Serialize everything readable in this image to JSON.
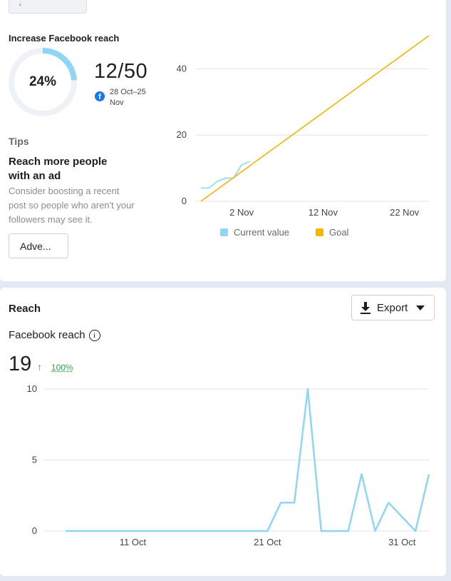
{
  "goal": {
    "title": "Increase Facebook reach",
    "percent_label": "24%",
    "progress_fraction": 0.24,
    "progress_text": "12/50",
    "platform_icon": "facebook-icon",
    "date_range": "28 Oct–25 Nov"
  },
  "tips": {
    "label": "Tips",
    "title": "Reach more people with an ad",
    "body": "Consider boosting a recent post so people who aren't your followers may see it.",
    "button_label": "Adve..."
  },
  "reach": {
    "title": "Reach",
    "export_label": "Export",
    "metric_label": "Facebook reach",
    "info_glyph": "i",
    "value": "19",
    "change": "100%",
    "change_color": "#31a24c"
  },
  "colors": {
    "current": "#8fd5f5",
    "goal": "#f5b600",
    "ring_track": "#eef1f5",
    "ring_fill": "#8fd5f5"
  },
  "chart_data": [
    {
      "type": "line",
      "title": "Increase Facebook reach",
      "x_tick_labels": [
        "2 Nov",
        "12 Nov",
        "22 Nov"
      ],
      "x_ticks": [
        5,
        15,
        25
      ],
      "xlim": [
        0,
        28
      ],
      "y_tick_labels": [
        "0",
        "20",
        "40"
      ],
      "y_ticks": [
        0,
        20,
        40
      ],
      "ylim": [
        0,
        50
      ],
      "legend": [
        "Current value",
        "Goal"
      ],
      "series": [
        {
          "name": "Current value",
          "x": [
            0,
            1,
            2,
            3,
            4,
            5,
            6
          ],
          "values": [
            4,
            4,
            6,
            7,
            7,
            11,
            12
          ]
        },
        {
          "name": "Goal",
          "x": [
            0,
            28
          ],
          "values": [
            0,
            50
          ]
        }
      ]
    },
    {
      "type": "line",
      "title": "Facebook reach",
      "x_tick_labels": [
        "11 Oct",
        "21 Oct",
        "31 Oct"
      ],
      "x_ticks": [
        5,
        15,
        25
      ],
      "xlim": [
        0,
        27
      ],
      "y_tick_labels": [
        "0",
        "5",
        "10"
      ],
      "y_ticks": [
        0,
        5,
        10
      ],
      "ylim": [
        0,
        10
      ],
      "series": [
        {
          "name": "Facebook reach",
          "x": [
            0,
            1,
            2,
            3,
            4,
            5,
            6,
            7,
            8,
            9,
            10,
            11,
            12,
            13,
            14,
            15,
            16,
            17,
            18,
            19,
            20,
            21,
            22,
            23,
            24,
            25,
            26,
            27
          ],
          "values": [
            0,
            0,
            0,
            0,
            0,
            0,
            0,
            0,
            0,
            0,
            0,
            0,
            0,
            0,
            0,
            0,
            2,
            2,
            10,
            0,
            0,
            0,
            4,
            0,
            2,
            1,
            0,
            4
          ]
        }
      ]
    }
  ]
}
